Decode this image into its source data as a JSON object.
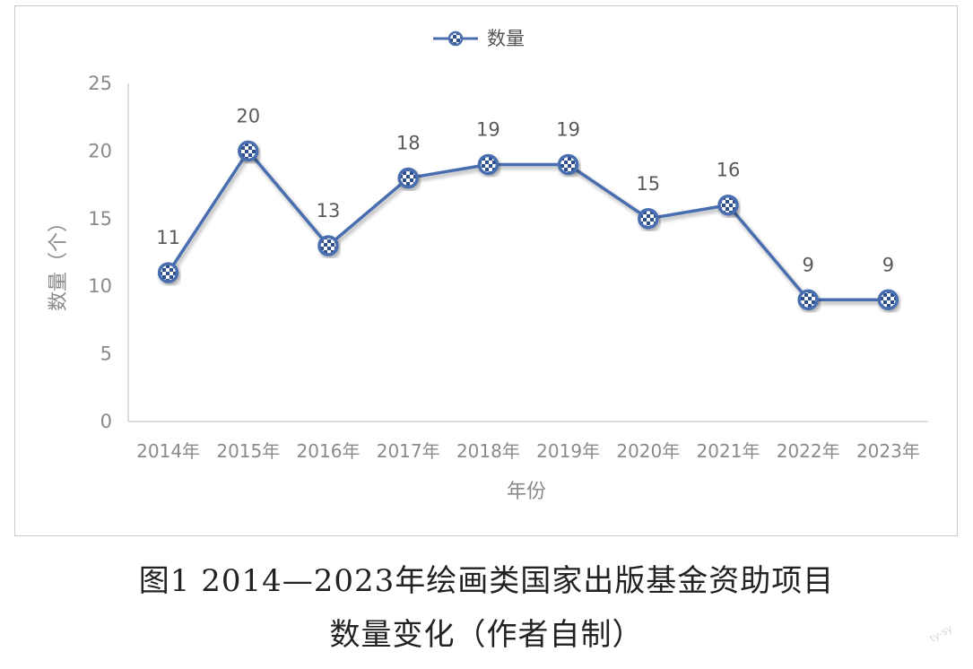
{
  "chart_data": {
    "type": "line",
    "categories": [
      "2014年",
      "2015年",
      "2016年",
      "2017年",
      "2018年",
      "2019年",
      "2020年",
      "2021年",
      "2022年",
      "2023年"
    ],
    "series": [
      {
        "name": "数量",
        "values": [
          11,
          20,
          13,
          18,
          19,
          19,
          15,
          16,
          9,
          9
        ]
      }
    ],
    "data_labels": [
      "11",
      "20",
      "13",
      "18",
      "19",
      "19",
      "15",
      "16",
      "9",
      "9"
    ],
    "xlabel": "年份",
    "ylabel": "数量（个）",
    "ylim": [
      0,
      25
    ],
    "yticks": [
      0,
      5,
      10,
      15,
      20,
      25
    ],
    "grid": false,
    "legend_position": "top",
    "colors": {
      "line": "#4a6eb0",
      "marker_light": "#ffffff",
      "marker_dark": "#2f4f8f",
      "axis": "#d0d0d0"
    }
  },
  "legend": {
    "label": "数量"
  },
  "caption": {
    "line1": "图1 2014—2023年绘画类国家出版基金资助项目",
    "line2": "数量变化（作者自制）"
  },
  "watermark": "ty-sy"
}
